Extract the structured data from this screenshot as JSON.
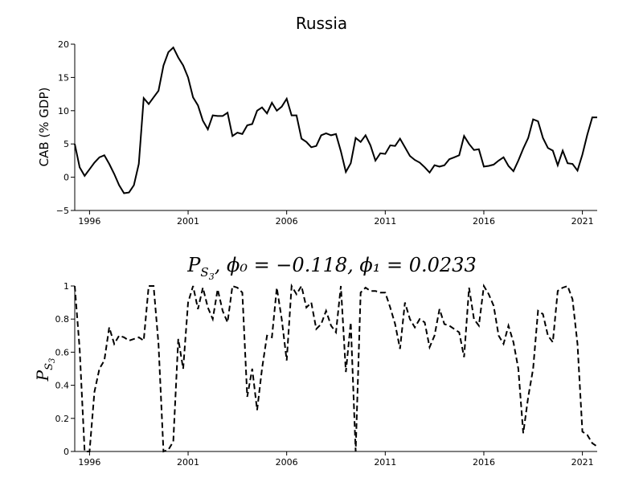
{
  "chart_data": [
    {
      "type": "line",
      "title": "Russia",
      "xlabel": "",
      "ylabel": "CAB (% GDP)",
      "xlim": [
        1995.25,
        2021.75
      ],
      "ylim": [
        -5,
        20
      ],
      "grid": false,
      "xticks": [
        1996,
        2001,
        2006,
        2011,
        2016,
        2021
      ],
      "yticks": [
        -5,
        0,
        5,
        10,
        15,
        20
      ],
      "xtick_labels": [
        "1996",
        "2001",
        "2006",
        "2011",
        "2016",
        "2021"
      ],
      "ytick_labels": [
        "−5",
        "0",
        "5",
        "10",
        "15",
        "20"
      ],
      "line_style": "solid",
      "color": "#000000",
      "series": [
        {
          "x": [
            1995.25,
            1995.5,
            1995.75,
            1996.0,
            1996.25,
            1996.5,
            1996.75,
            1997.0,
            1997.25,
            1997.5,
            1997.75,
            1998.0,
            1998.25,
            1998.5,
            1998.75,
            1999.0,
            1999.25,
            1999.5,
            1999.75,
            2000.0,
            2000.25,
            2000.5,
            2000.75,
            2001.0,
            2001.25,
            2001.5,
            2001.75,
            2002.0,
            2002.25,
            2002.5,
            2002.75,
            2003.0,
            2003.25,
            2003.5,
            2003.75,
            2004.0,
            2004.25,
            2004.5,
            2004.75,
            2005.0,
            2005.25,
            2005.5,
            2005.75,
            2006.0,
            2006.25,
            2006.5,
            2006.75,
            2007.0,
            2007.25,
            2007.5,
            2007.75,
            2008.0,
            2008.25,
            2008.5,
            2008.75,
            2009.0,
            2009.25,
            2009.5,
            2009.75,
            2010.0,
            2010.25,
            2010.5,
            2010.75,
            2011.0,
            2011.25,
            2011.5,
            2011.75,
            2012.0,
            2012.25,
            2012.5,
            2012.75,
            2013.0,
            2013.25,
            2013.5,
            2013.75,
            2014.0,
            2014.25,
            2014.5,
            2014.75,
            2015.0,
            2015.25,
            2015.5,
            2015.75,
            2016.0,
            2016.25,
            2016.5,
            2016.75,
            2017.0,
            2017.25,
            2017.5,
            2017.75,
            2018.0,
            2018.25,
            2018.5,
            2018.75,
            2019.0,
            2019.25,
            2019.5,
            2019.75,
            2020.0,
            2020.25,
            2020.5,
            2020.75,
            2021.0,
            2021.25,
            2021.5,
            2021.75
          ],
          "y": [
            5.0,
            1.5,
            0.2,
            1.2,
            2.2,
            3.0,
            3.3,
            2.0,
            0.5,
            -1.2,
            -2.4,
            -2.3,
            -1.2,
            2.0,
            11.9,
            11.0,
            12.0,
            13.0,
            16.8,
            18.8,
            19.5,
            18.0,
            16.8,
            15.0,
            12.0,
            10.8,
            8.5,
            7.2,
            9.3,
            9.2,
            9.2,
            9.7,
            6.2,
            6.7,
            6.5,
            7.8,
            8.0,
            10.0,
            10.5,
            9.6,
            11.2,
            10.0,
            10.6,
            11.8,
            9.3,
            9.3,
            5.8,
            5.3,
            4.5,
            4.7,
            6.3,
            6.6,
            6.3,
            6.5,
            3.9,
            0.8,
            2.1,
            5.9,
            5.3,
            6.3,
            4.8,
            2.5,
            3.6,
            3.5,
            4.8,
            4.7,
            5.8,
            4.5,
            3.2,
            2.6,
            2.2,
            1.5,
            0.7,
            1.8,
            1.6,
            1.8,
            2.7,
            3.0,
            3.3,
            6.2,
            5.0,
            4.1,
            4.2,
            1.6,
            1.7,
            1.9,
            2.5,
            3.0,
            1.7,
            0.9,
            2.5,
            4.3,
            5.9,
            8.7,
            8.4,
            5.9,
            4.4,
            4.0,
            1.8,
            4.0,
            2.1,
            2.0,
            1.0,
            3.4,
            6.4,
            9.0,
            9.0
          ]
        }
      ]
    },
    {
      "type": "line",
      "title": "P_{S_3}, φ_0 = −0.118, φ_1 = 0.0233",
      "title_parts": {
        "p": "P",
        "s": "S",
        "s3": "3",
        "rest": ", ϕ₀ = −0.118, ϕ₁ = 0.0233"
      },
      "xlabel": "",
      "ylabel": "P_{S_3}",
      "ylabel_parts": {
        "p": "P",
        "s": "S",
        "s3": "3"
      },
      "xlim": [
        1995.25,
        2021.75
      ],
      "ylim": [
        0,
        1
      ],
      "grid": false,
      "xticks": [
        1996,
        2001,
        2006,
        2011,
        2016,
        2021
      ],
      "yticks": [
        0,
        0.2,
        0.4,
        0.6,
        0.8,
        1
      ],
      "xtick_labels": [
        "1996",
        "2001",
        "2006",
        "2011",
        "2016",
        "2021"
      ],
      "ytick_labels": [
        "0",
        "0.2",
        "0.4",
        "0.6",
        "0.8",
        "1"
      ],
      "line_style": "dashed",
      "color": "#000000",
      "series": [
        {
          "x": [
            1995.25,
            1995.5,
            1995.75,
            1996.0,
            1996.25,
            1996.5,
            1996.75,
            1997.0,
            1997.25,
            1997.5,
            1997.75,
            1998.0,
            1998.25,
            1998.5,
            1998.75,
            1999.0,
            1999.25,
            1999.5,
            1999.75,
            2000.0,
            2000.25,
            2000.5,
            2000.75,
            2001.0,
            2001.25,
            2001.5,
            2001.75,
            2002.0,
            2002.25,
            2002.5,
            2002.75,
            2003.0,
            2003.25,
            2003.5,
            2003.75,
            2004.0,
            2004.25,
            2004.5,
            2004.75,
            2005.0,
            2005.25,
            2005.5,
            2005.75,
            2006.0,
            2006.25,
            2006.5,
            2006.75,
            2007.0,
            2007.25,
            2007.5,
            2007.75,
            2008.0,
            2008.25,
            2008.5,
            2008.75,
            2009.0,
            2009.25,
            2009.5,
            2009.75,
            2010.0,
            2010.25,
            2010.5,
            2010.75,
            2011.0,
            2011.25,
            2011.5,
            2011.75,
            2012.0,
            2012.25,
            2012.5,
            2012.75,
            2013.0,
            2013.25,
            2013.5,
            2013.75,
            2014.0,
            2014.25,
            2014.5,
            2014.75,
            2015.0,
            2015.25,
            2015.5,
            2015.75,
            2016.0,
            2016.25,
            2016.5,
            2016.75,
            2017.0,
            2017.25,
            2017.5,
            2017.75,
            2018.0,
            2018.25,
            2018.5,
            2018.75,
            2019.0,
            2019.25,
            2019.5,
            2019.75,
            2020.0,
            2020.25,
            2020.5,
            2020.75,
            2021.0,
            2021.25,
            2021.5,
            2021.75
          ],
          "y": [
            1.0,
            0.62,
            0.0,
            0.0,
            0.36,
            0.5,
            0.55,
            0.75,
            0.65,
            0.7,
            0.69,
            0.67,
            0.68,
            0.69,
            0.67,
            1.0,
            1.0,
            0.65,
            0.0,
            0.01,
            0.06,
            0.68,
            0.5,
            0.9,
            1.0,
            0.86,
            0.99,
            0.87,
            0.8,
            0.98,
            0.85,
            0.78,
            1.0,
            0.99,
            0.96,
            0.33,
            0.5,
            0.25,
            0.5,
            0.7,
            0.69,
            0.99,
            0.8,
            0.55,
            1.0,
            0.95,
            1.0,
            0.87,
            0.9,
            0.74,
            0.77,
            0.85,
            0.76,
            0.72,
            1.0,
            0.48,
            0.78,
            0.0,
            0.96,
            0.99,
            0.97,
            0.97,
            0.96,
            0.96,
            0.87,
            0.77,
            0.62,
            0.9,
            0.8,
            0.75,
            0.8,
            0.78,
            0.63,
            0.7,
            0.86,
            0.77,
            0.76,
            0.74,
            0.72,
            0.57,
            0.99,
            0.8,
            0.76,
            1.0,
            0.95,
            0.88,
            0.7,
            0.65,
            0.76,
            0.66,
            0.5,
            0.11,
            0.33,
            0.5,
            0.85,
            0.83,
            0.7,
            0.66,
            0.97,
            0.99,
            1.0,
            0.92,
            0.65,
            0.12,
            0.1,
            0.05,
            0.03
          ]
        }
      ]
    }
  ]
}
